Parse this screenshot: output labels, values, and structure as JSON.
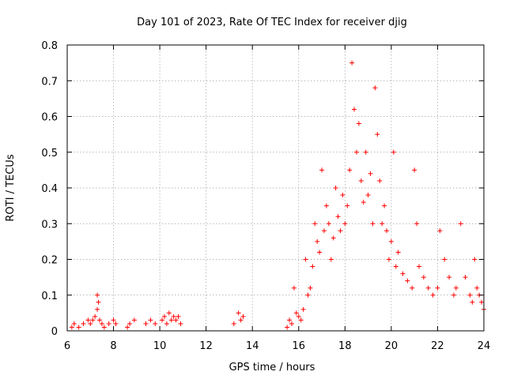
{
  "chart_data": {
    "type": "scatter",
    "title": "Day 101 of 2023, Rate Of TEC Index for receiver djig",
    "xlabel": "GPS time / hours",
    "ylabel": "ROTI / TECUs",
    "xlim": [
      6,
      24
    ],
    "ylim": [
      0,
      0.8
    ],
    "xticks": [
      6,
      8,
      10,
      12,
      14,
      16,
      18,
      20,
      22,
      24
    ],
    "yticks": [
      0,
      0.1,
      0.2,
      0.3,
      0.4,
      0.5,
      0.6,
      0.7,
      0.8
    ],
    "xtick_labels": [
      "6",
      "8",
      "10",
      "12",
      "14",
      "16",
      "18",
      "20",
      "22",
      "24"
    ],
    "ytick_labels": [
      "0",
      "0.1",
      "0.2",
      "0.3",
      "0.4",
      "0.5",
      "0.6",
      "0.7",
      "0.8"
    ],
    "grid": true,
    "marker": "+",
    "series": [
      {
        "color": "#ff0000",
        "x": [
          6.2,
          6.3,
          6.5,
          6.7,
          6.9,
          7.0,
          7.1,
          7.2,
          7.3,
          7.3,
          7.35,
          7.4,
          7.5,
          7.6,
          7.8,
          8.0,
          8.1,
          8.6,
          8.7,
          8.9,
          9.4,
          9.6,
          9.8,
          10.1,
          10.2,
          10.3,
          10.4,
          10.5,
          10.6,
          10.7,
          10.8,
          10.9,
          13.2,
          13.4,
          13.5,
          13.6,
          15.5,
          15.6,
          15.7,
          15.8,
          15.9,
          16.0,
          16.1,
          16.2,
          16.3,
          16.4,
          16.5,
          16.6,
          16.7,
          16.8,
          16.9,
          17.0,
          17.1,
          17.2,
          17.3,
          17.4,
          17.5,
          17.6,
          17.7,
          17.8,
          17.9,
          18.0,
          18.1,
          18.2,
          18.3,
          18.4,
          18.5,
          18.6,
          18.7,
          18.8,
          18.9,
          19.0,
          19.1,
          19.2,
          19.3,
          19.4,
          19.5,
          19.6,
          19.7,
          19.8,
          19.9,
          20.0,
          20.1,
          20.2,
          20.3,
          20.5,
          20.7,
          20.9,
          21.0,
          21.1,
          21.2,
          21.4,
          21.6,
          21.8,
          22.0,
          22.1,
          22.3,
          22.5,
          22.7,
          22.8,
          23.0,
          23.2,
          23.4,
          23.5,
          23.6,
          23.7,
          23.8,
          23.9,
          24.0
        ],
        "y": [
          0.01,
          0.02,
          0.01,
          0.02,
          0.03,
          0.02,
          0.03,
          0.04,
          0.1,
          0.06,
          0.08,
          0.03,
          0.02,
          0.01,
          0.02,
          0.03,
          0.02,
          0.01,
          0.02,
          0.03,
          0.02,
          0.03,
          0.02,
          0.03,
          0.04,
          0.02,
          0.05,
          0.03,
          0.04,
          0.03,
          0.04,
          0.02,
          0.02,
          0.05,
          0.03,
          0.04,
          0.01,
          0.03,
          0.02,
          0.12,
          0.05,
          0.04,
          0.03,
          0.06,
          0.2,
          0.1,
          0.12,
          0.18,
          0.3,
          0.25,
          0.22,
          0.45,
          0.28,
          0.35,
          0.3,
          0.2,
          0.26,
          0.4,
          0.32,
          0.28,
          0.38,
          0.3,
          0.35,
          0.45,
          0.75,
          0.62,
          0.5,
          0.58,
          0.42,
          0.36,
          0.5,
          0.38,
          0.44,
          0.3,
          0.68,
          0.55,
          0.42,
          0.3,
          0.35,
          0.28,
          0.2,
          0.25,
          0.5,
          0.18,
          0.22,
          0.16,
          0.14,
          0.12,
          0.45,
          0.3,
          0.18,
          0.15,
          0.12,
          0.1,
          0.12,
          0.28,
          0.2,
          0.15,
          0.1,
          0.12,
          0.3,
          0.15,
          0.1,
          0.08,
          0.2,
          0.12,
          0.1,
          0.08,
          0.06
        ]
      }
    ]
  }
}
